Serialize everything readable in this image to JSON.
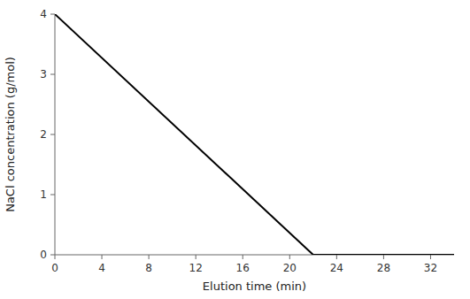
{
  "chart_data": {
    "type": "line",
    "x": [
      0,
      22,
      34
    ],
    "values": [
      4,
      0,
      0
    ],
    "color": "#000000",
    "xlabel": "Elution time (min)",
    "ylabel": "NaCl concentration (g/mol)",
    "xlim": [
      0,
      34
    ],
    "ylim": [
      0,
      4
    ],
    "xticks": [
      0,
      4,
      8,
      12,
      16,
      20,
      24,
      28,
      32
    ],
    "yticks": [
      0,
      1,
      2,
      3,
      4
    ],
    "grid": false
  }
}
